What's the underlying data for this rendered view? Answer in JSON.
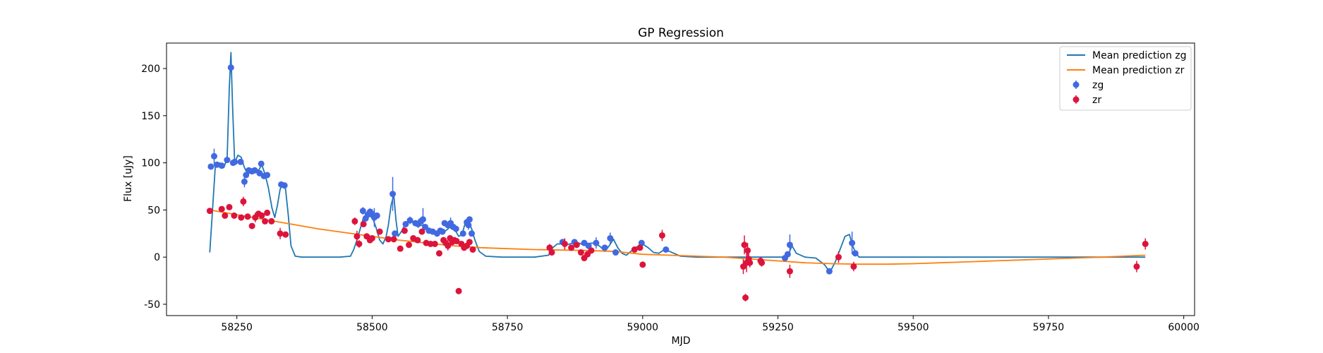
{
  "chart_data": {
    "type": "scatter",
    "title": "GP Regression",
    "xlabel": "MJD",
    "ylabel": "Flux [uJy]",
    "xlim": [
      58120,
      60020
    ],
    "ylim": [
      -62,
      227
    ],
    "xticks": [
      58250,
      58500,
      58750,
      59000,
      59250,
      59500,
      59750,
      60000
    ],
    "yticks": [
      -50,
      0,
      50,
      100,
      150,
      200
    ],
    "legend": {
      "position": "top-right",
      "entries": [
        "Mean prediction zg",
        "Mean prediction zr",
        "zg",
        "zr"
      ]
    },
    "colors": {
      "zg_line": "#1f77b4",
      "zr_line": "#ff7f0e",
      "zg_points": "#4169e1",
      "zr_points": "#dc143c"
    },
    "series": [
      {
        "name": "Mean prediction zg",
        "kind": "line",
        "x": [
          58200,
          58205,
          58210,
          58218,
          58226,
          58232,
          58236,
          58239,
          58242,
          58246,
          58252,
          58258,
          58264,
          58270,
          58278,
          58284,
          58290,
          58296,
          58302,
          58308,
          58315,
          58320,
          58325,
          58330,
          58335,
          58340,
          58345,
          58350,
          58358,
          58370,
          58400,
          58440,
          58460,
          58466,
          58472,
          58478,
          58484,
          58490,
          58496,
          58502,
          58508,
          58514,
          58520,
          58526,
          58530,
          58535,
          58540,
          58544,
          58548,
          58555,
          58562,
          58570,
          58578,
          58586,
          58594,
          58600,
          58610,
          58620,
          58628,
          58636,
          58644,
          58652,
          58660,
          58666,
          58672,
          58678,
          58684,
          58690,
          58698,
          58710,
          58740,
          58800,
          58826,
          58834,
          58842,
          58850,
          58858,
          58866,
          58874,
          58882,
          58890,
          58898,
          58906,
          58914,
          58922,
          58930,
          58938,
          58946,
          58954,
          58962,
          58970,
          58978,
          58986,
          58994,
          59002,
          59010,
          59020,
          59030,
          59040,
          59050,
          59070,
          59100,
          59200,
          59250,
          59262,
          59270,
          59276,
          59284,
          59300,
          59320,
          59336,
          59346,
          59356,
          59366,
          59374,
          59382,
          59388,
          59394,
          59400,
          59410,
          59500,
          59700,
          59929
        ],
        "y": [
          5,
          50,
          95,
          100,
          95,
          105,
          180,
          217,
          160,
          100,
          108,
          106,
          95,
          88,
          91,
          93,
          92,
          98,
          88,
          74,
          52,
          42,
          55,
          72,
          77,
          72,
          45,
          12,
          1,
          0,
          0,
          0,
          1,
          8,
          18,
          30,
          42,
          46,
          44,
          40,
          30,
          18,
          14,
          22,
          34,
          55,
          66,
          40,
          22,
          28,
          36,
          38,
          36,
          35,
          33,
          31,
          28,
          27,
          25,
          28,
          32,
          30,
          22,
          24,
          36,
          38,
          30,
          18,
          6,
          1,
          0,
          0,
          2,
          10,
          14,
          14,
          13,
          14,
          16,
          15,
          13,
          14,
          15,
          14,
          11,
          6,
          12,
          19,
          10,
          4,
          2,
          6,
          10,
          12,
          13,
          10,
          5,
          4,
          8,
          6,
          1,
          0,
          0,
          0,
          0,
          4,
          12,
          4,
          0,
          -1,
          -8,
          -16,
          -5,
          10,
          22,
          24,
          12,
          4,
          0,
          0,
          0,
          0,
          0
        ]
      },
      {
        "name": "Mean prediction zr",
        "kind": "line",
        "x": [
          58200,
          58250,
          58300,
          58350,
          58400,
          58450,
          58500,
          58550,
          58600,
          58650,
          58700,
          58750,
          58800,
          58850,
          58900,
          58950,
          59000,
          59050,
          59100,
          59150,
          59200,
          59250,
          59300,
          59350,
          59400,
          59450,
          59500,
          59550,
          59600,
          59650,
          59700,
          59750,
          59800,
          59850,
          59929
        ],
        "y": [
          50,
          45,
          40,
          35,
          30,
          26,
          22,
          18,
          15,
          12,
          10,
          9,
          8,
          7.5,
          7,
          6,
          3,
          2,
          1,
          0,
          -2,
          -4,
          -6,
          -7,
          -7.5,
          -7.5,
          -7,
          -6,
          -5,
          -4,
          -3,
          -2,
          -1,
          0,
          2
        ]
      },
      {
        "name": "zg",
        "kind": "errorbar",
        "x": [
          58202,
          58208,
          58213,
          58222,
          58232,
          58239,
          58243,
          58246,
          58257,
          58264,
          58267,
          58272,
          58278,
          58283,
          58292,
          58295,
          58300,
          58306,
          58332,
          58338,
          58483,
          58488,
          58492,
          58496,
          58500,
          58504,
          58509,
          58538,
          58542,
          58562,
          58570,
          58580,
          58585,
          58590,
          58594,
          58598,
          58605,
          58612,
          58620,
          58626,
          58630,
          58634,
          58640,
          58645,
          58650,
          58655,
          58668,
          58675,
          58678,
          58680,
          58684,
          58852,
          58874,
          58892,
          58900,
          58914,
          58930,
          58940,
          58950,
          58998,
          59043,
          59263,
          59268,
          59272,
          59345,
          59387,
          59393
        ],
        "y": [
          96,
          107,
          98,
          97,
          103,
          201,
          100,
          101,
          101,
          80,
          87,
          92,
          91,
          92,
          89,
          99,
          86,
          87,
          77,
          76,
          49,
          41,
          45,
          48,
          46,
          42,
          44,
          67,
          25,
          35,
          39,
          36,
          35,
          38,
          40,
          32,
          28,
          27,
          25,
          28,
          27,
          36,
          34,
          36,
          32,
          30,
          25,
          37,
          34,
          40,
          25,
          16,
          16,
          15,
          12,
          15,
          10,
          20,
          5,
          15,
          8,
          -1,
          3,
          13,
          -15,
          15,
          4
        ],
        "yerr": [
          3,
          8,
          3,
          3,
          3,
          5,
          3,
          3,
          3,
          6,
          3,
          3,
          3,
          3,
          3,
          3,
          3,
          3,
          3,
          3,
          4,
          3,
          3,
          4,
          5,
          10,
          3,
          18,
          3,
          3,
          4,
          3,
          4,
          4,
          12,
          3,
          3,
          3,
          3,
          3,
          3,
          3,
          3,
          6,
          3,
          3,
          3,
          3,
          5,
          3,
          3,
          3,
          3,
          3,
          3,
          6,
          3,
          6,
          3,
          3,
          3,
          3,
          3,
          11,
          3,
          12,
          3
        ]
      },
      {
        "name": "zr",
        "kind": "errorbar",
        "x": [
          58200,
          58222,
          58228,
          58236,
          58245,
          58258,
          58262,
          58270,
          58278,
          58284,
          58290,
          58296,
          58302,
          58306,
          58314,
          58330,
          58340,
          58468,
          58472,
          58476,
          58484,
          58490,
          58496,
          58500,
          58514,
          58530,
          58540,
          58552,
          58560,
          58568,
          58576,
          58584,
          58592,
          58600,
          58608,
          58616,
          58624,
          58632,
          58636,
          58640,
          58644,
          58648,
          58652,
          58656,
          58660,
          58665,
          58670,
          58675,
          58680,
          58686,
          58828,
          58832,
          58856,
          58868,
          58878,
          58886,
          58892,
          58898,
          58905,
          58985,
          58995,
          59000,
          59036,
          59186,
          59188,
          59190,
          59192,
          59194,
          59196,
          59198,
          59218,
          59220,
          59272,
          59362,
          59390,
          59913,
          59929
        ],
        "y": [
          49,
          51,
          44,
          53,
          44,
          42,
          59,
          43,
          33,
          42,
          46,
          44,
          38,
          47,
          38,
          25,
          24,
          38,
          22,
          14,
          35,
          22,
          18,
          20,
          27,
          19,
          19,
          9,
          28,
          13,
          20,
          18,
          27,
          15,
          14,
          14,
          4,
          18,
          15,
          12,
          20,
          16,
          18,
          17,
          -36,
          14,
          10,
          12,
          16,
          8,
          10,
          5,
          14,
          10,
          13,
          5,
          -1,
          3,
          7,
          8,
          10,
          -8,
          23,
          -10,
          13,
          -43,
          -6,
          7,
          -2,
          -6,
          -4,
          -6,
          -15,
          0,
          -10,
          -10,
          14
        ],
        "yerr": [
          3,
          3,
          3,
          3,
          3,
          3,
          5,
          3,
          3,
          5,
          3,
          3,
          3,
          3,
          3,
          6,
          3,
          4,
          6,
          4,
          3,
          3,
          3,
          3,
          3,
          3,
          3,
          3,
          3,
          3,
          3,
          3,
          3,
          3,
          3,
          3,
          3,
          3,
          3,
          5,
          3,
          3,
          3,
          3,
          3,
          3,
          3,
          3,
          3,
          3,
          4,
          3,
          6,
          3,
          3,
          3,
          3,
          3,
          3,
          3,
          3,
          3,
          6,
          8,
          10,
          4,
          10,
          8,
          6,
          5,
          4,
          4,
          7,
          6,
          5,
          6,
          6
        ]
      }
    ]
  }
}
